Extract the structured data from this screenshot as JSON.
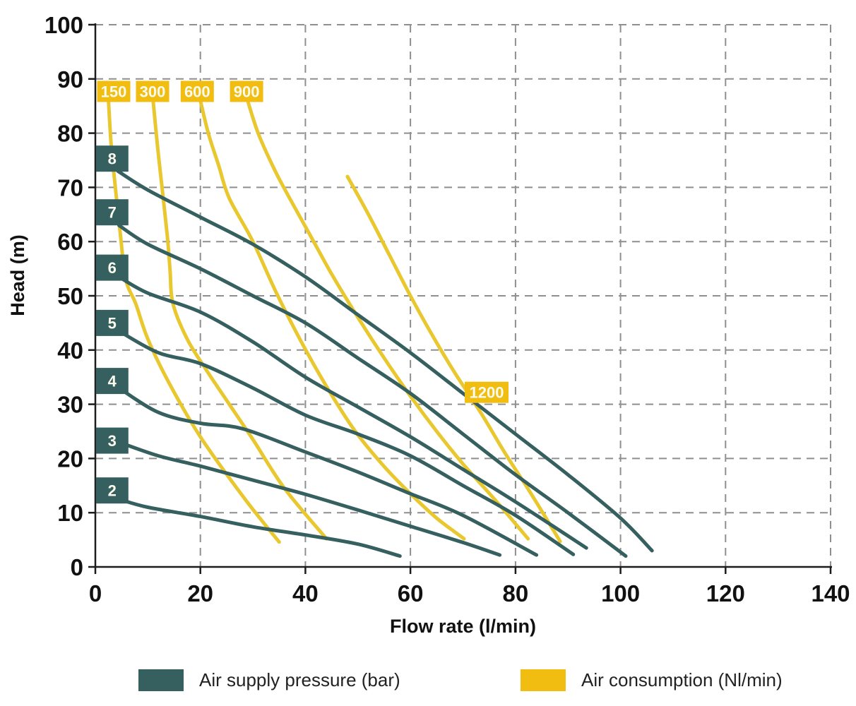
{
  "page": {
    "background": "#ffffff"
  },
  "chart_data": {
    "type": "line",
    "title": "",
    "xlabel": "Flow rate (l/min)",
    "ylabel": "Head (m)",
    "xlim": [
      0,
      140
    ],
    "ylim": [
      0,
      100
    ],
    "x_ticks": [
      0,
      20,
      40,
      60,
      80,
      100,
      120,
      140
    ],
    "y_ticks": [
      0,
      10,
      20,
      30,
      40,
      50,
      60,
      70,
      80,
      90,
      100
    ],
    "grid": true,
    "grid_style": "dashed",
    "legend_position": "bottom",
    "groups": [
      {
        "name": "Air supply pressure (bar)",
        "role": "pressure",
        "unit": "bar",
        "color": "#35605f",
        "series": [
          {
            "label": "8",
            "label_x": 3.2,
            "label_y": 75.3,
            "points": [
              [
                4.3,
                73
              ],
              [
                10,
                69.5
              ],
              [
                20,
                64.5
              ],
              [
                30,
                59.5
              ],
              [
                40,
                53.5
              ],
              [
                50,
                46.5
              ],
              [
                60,
                39.5
              ],
              [
                70,
                32
              ],
              [
                80,
                24.5
              ],
              [
                90,
                17
              ],
              [
                100,
                9
              ],
              [
                106,
                3
              ]
            ]
          },
          {
            "label": "7",
            "label_x": 3.2,
            "label_y": 65.4,
            "points": [
              [
                4.5,
                63
              ],
              [
                10,
                59.5
              ],
              [
                20,
                55
              ],
              [
                30,
                50
              ],
              [
                40,
                45
              ],
              [
                50,
                38.5
              ],
              [
                60,
                32
              ],
              [
                70,
                24.5
              ],
              [
                80,
                17
              ],
              [
                90,
                10
              ],
              [
                101,
                2
              ]
            ]
          },
          {
            "label": "6",
            "label_x": 3.2,
            "label_y": 55.2,
            "points": [
              [
                4.5,
                53.5
              ],
              [
                10,
                50.5
              ],
              [
                20,
                47
              ],
              [
                30,
                41.5
              ],
              [
                40,
                35
              ],
              [
                50,
                29.5
              ],
              [
                60,
                24
              ],
              [
                70,
                18
              ],
              [
                80,
                12
              ],
              [
                93.5,
                3.5
              ]
            ]
          },
          {
            "label": "5",
            "label_x": 3.2,
            "label_y": 45.0,
            "points": [
              [
                4.5,
                43.5
              ],
              [
                12,
                39.5
              ],
              [
                20,
                37.5
              ],
              [
                30,
                33
              ],
              [
                40,
                28
              ],
              [
                50,
                24.5
              ],
              [
                60,
                20.5
              ],
              [
                70,
                15
              ],
              [
                80,
                9.5
              ],
              [
                91,
                2.3
              ]
            ]
          },
          {
            "label": "4",
            "label_x": 3.2,
            "label_y": 34.3,
            "points": [
              [
                4.5,
                33
              ],
              [
                12,
                28.5
              ],
              [
                20,
                26.5
              ],
              [
                28,
                25.5
              ],
              [
                40,
                21.2
              ],
              [
                50,
                17.5
              ],
              [
                60,
                13.5
              ],
              [
                70,
                9.5
              ],
              [
                84,
                2.2
              ]
            ]
          },
          {
            "label": "3",
            "label_x": 3.2,
            "label_y": 23.3,
            "points": [
              [
                4.5,
                23
              ],
              [
                12,
                20.5
              ],
              [
                20,
                18.6
              ],
              [
                30,
                16
              ],
              [
                40,
                13.4
              ],
              [
                50,
                10.5
              ],
              [
                60,
                7.5
              ],
              [
                70,
                4.5
              ],
              [
                77,
                2.2
              ]
            ]
          },
          {
            "label": "2",
            "label_x": 3.2,
            "label_y": 14.1,
            "points": [
              [
                4.5,
                12.5
              ],
              [
                10,
                11
              ],
              [
                20,
                9.3
              ],
              [
                30,
                7.4
              ],
              [
                40,
                5.9
              ],
              [
                50,
                4.2
              ],
              [
                58,
                2
              ]
            ]
          }
        ]
      },
      {
        "name": "Air consumption (Nl/min)",
        "role": "consumption",
        "unit": "Nl/min",
        "color": "#f1bd11",
        "series": [
          {
            "label": "150",
            "label_x": 3.5,
            "label_y": 87.7,
            "points": [
              [
                2.5,
                86
              ],
              [
                3,
                78
              ],
              [
                3.8,
                70
              ],
              [
                4.8,
                61
              ],
              [
                5.8,
                53
              ],
              [
                7.7,
                48.5
              ],
              [
                10,
                42
              ],
              [
                14,
                34
              ],
              [
                20,
                24
              ],
              [
                28.5,
                12.5
              ],
              [
                35,
                4.6
              ]
            ]
          },
          {
            "label": "300",
            "label_x": 10.9,
            "label_y": 87.7,
            "points": [
              [
                11,
                86
              ],
              [
                11.8,
                78
              ],
              [
                12.7,
                70
              ],
              [
                13.7,
                61
              ],
              [
                14.2,
                55
              ],
              [
                14.8,
                48.5
              ],
              [
                17.5,
                42
              ],
              [
                21,
                36.5
              ],
              [
                25.5,
                30
              ],
              [
                30,
                23.5
              ],
              [
                36,
                14.5
              ],
              [
                44,
                5.2
              ]
            ]
          },
          {
            "label": "600",
            "label_x": 19.4,
            "label_y": 87.7,
            "points": [
              [
                20,
                86
              ],
              [
                21.5,
                80
              ],
              [
                23.5,
                74
              ],
              [
                25.5,
                68
              ],
              [
                30,
                60
              ],
              [
                34.5,
                50.5
              ],
              [
                39.5,
                41
              ],
              [
                44.5,
                32.5
              ],
              [
                49.5,
                25
              ],
              [
                55,
                18.5
              ],
              [
                60,
                13.5
              ],
              [
                65,
                9
              ],
              [
                70.2,
                5.2
              ]
            ]
          },
          {
            "label": "900",
            "label_x": 28.8,
            "label_y": 87.7,
            "points": [
              [
                29,
                86
              ],
              [
                31,
                80
              ],
              [
                34,
                73.5
              ],
              [
                37,
                68
              ],
              [
                41,
                61
              ],
              [
                45,
                54
              ],
              [
                50,
                46
              ],
              [
                55,
                38.5
              ],
              [
                60,
                31.5
              ],
              [
                65,
                25
              ],
              [
                70,
                19
              ],
              [
                76,
                12.5
              ],
              [
                82.4,
                5.2
              ]
            ]
          },
          {
            "label": "1200",
            "label_x": 74.5,
            "label_y": 32.2,
            "points": [
              [
                48,
                72
              ],
              [
                52,
                65
              ],
              [
                56,
                57.5
              ],
              [
                60,
                50
              ],
              [
                64,
                43
              ],
              [
                68,
                36.5
              ],
              [
                71,
                32
              ],
              [
                74,
                27.5
              ],
              [
                78,
                21
              ],
              [
                82,
                15
              ],
              [
                85.5,
                9.5
              ],
              [
                88.5,
                4.7
              ]
            ]
          }
        ]
      }
    ]
  },
  "legend": {
    "items": [
      {
        "label": "Air supply pressure (bar)",
        "color": "#35605f"
      },
      {
        "label": "Air consumption (Nl/min)",
        "color": "#f1bd11"
      }
    ]
  }
}
